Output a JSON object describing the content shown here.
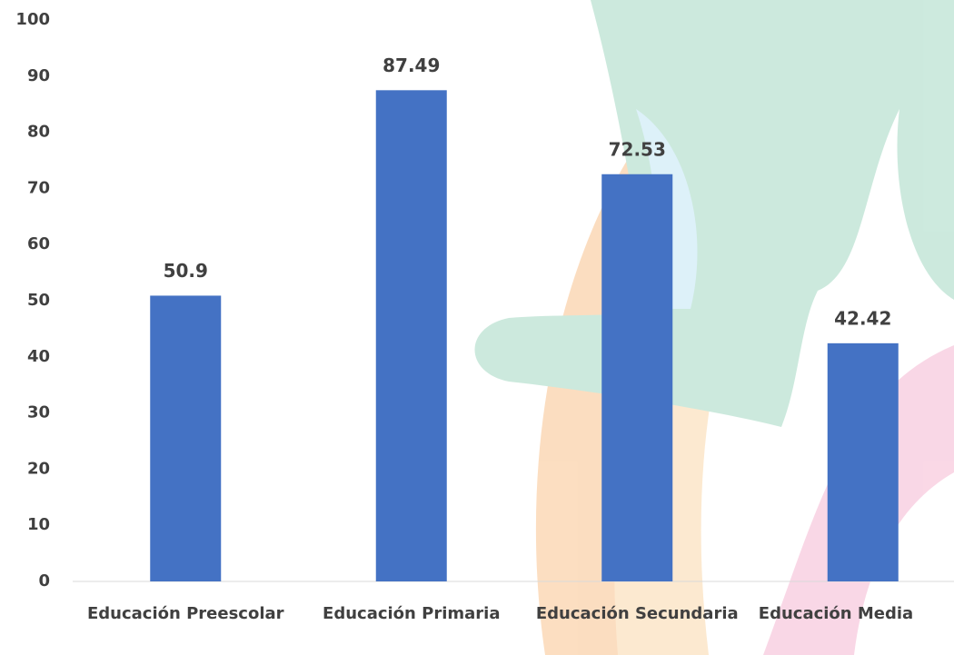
{
  "chart_data": {
    "type": "bar",
    "categories": [
      "Educación Preescolar",
      "Educación Primaria",
      "Educación Secundaria",
      "Educación Media"
    ],
    "values": [
      50.9,
      87.49,
      72.53,
      42.42
    ],
    "color": "#4472c4",
    "ylim": [
      0,
      100
    ],
    "yticks": [
      0,
      10,
      20,
      30,
      40,
      50,
      60,
      70,
      80,
      90,
      100
    ]
  }
}
